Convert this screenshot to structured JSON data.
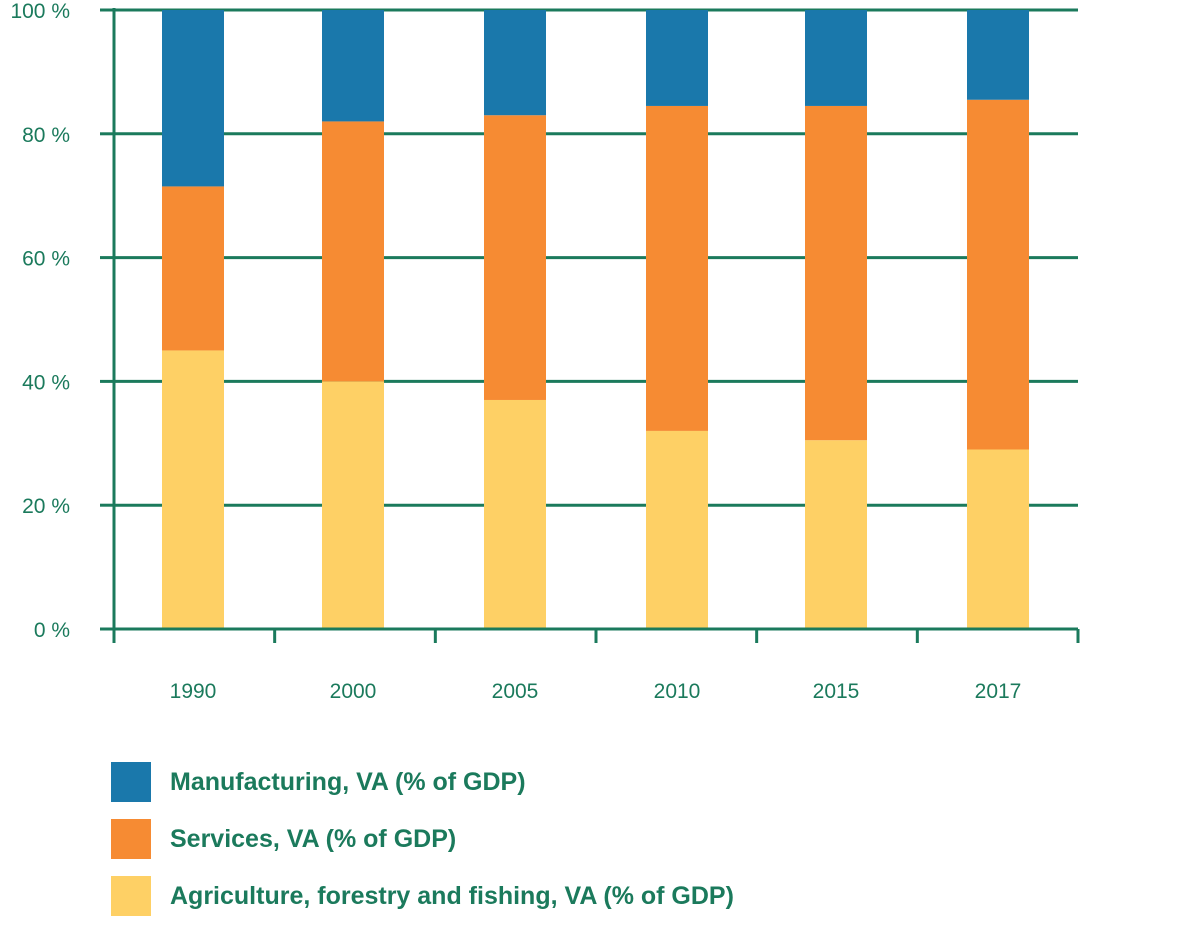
{
  "chart_data": {
    "type": "bar",
    "stacked": true,
    "categories": [
      "1990",
      "2000",
      "2005",
      "2010",
      "2015",
      "2017"
    ],
    "series": [
      {
        "name": "Agriculture, forestry and fishing, VA (% of GDP)",
        "color": "#fed065",
        "values": [
          45,
          40,
          37,
          32,
          30.5,
          29
        ]
      },
      {
        "name": "Services, VA (% of GDP)",
        "color": "#f68b33",
        "values": [
          26.5,
          42,
          46,
          52.5,
          54,
          56.5
        ]
      },
      {
        "name": "Manufacturing, VA (% of GDP)",
        "color": "#1a78ab",
        "values": [
          28.5,
          18,
          17,
          15.5,
          15.5,
          14.5
        ]
      }
    ],
    "legend_order": [
      2,
      1,
      0
    ],
    "y_ticks": [
      {
        "value": 0,
        "label": "0 %"
      },
      {
        "value": 20,
        "label": "20 %"
      },
      {
        "value": 40,
        "label": "40 %"
      },
      {
        "value": 60,
        "label": "60 %"
      },
      {
        "value": 80,
        "label": "80 %"
      },
      {
        "value": 100,
        "label": "100 %"
      }
    ],
    "ylim": [
      0,
      100
    ],
    "grid": true,
    "legend_position": "bottom-left",
    "axis_color": "#1b7a5c",
    "title": "",
    "xlabel": "",
    "ylabel": ""
  }
}
